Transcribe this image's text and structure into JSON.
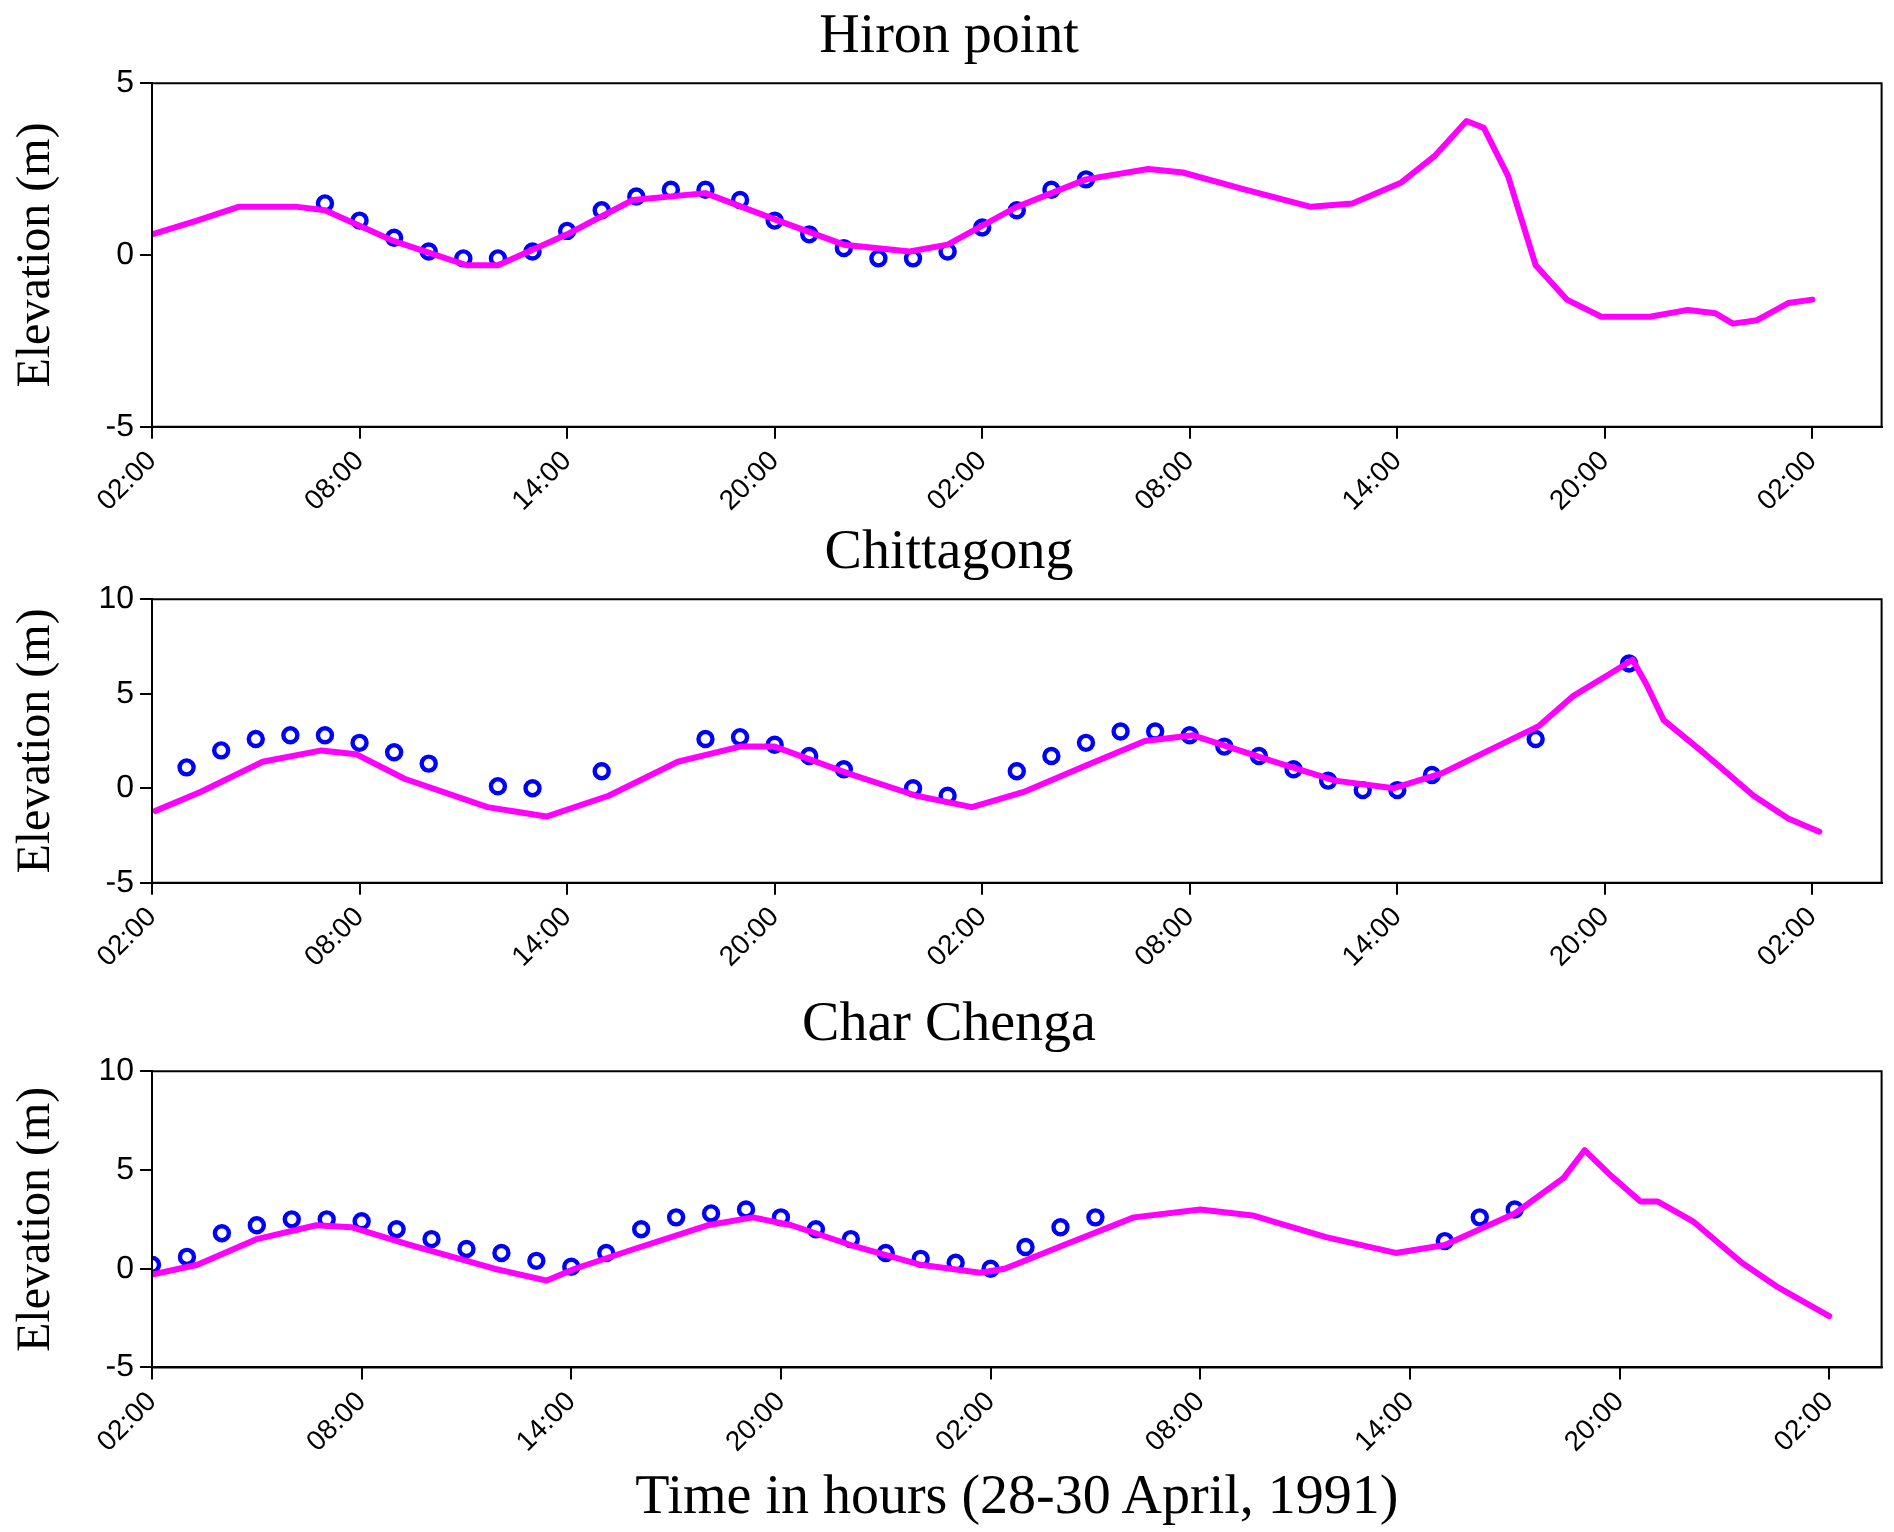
{
  "chart_data": [
    {
      "type": "line",
      "title": "Hiron point",
      "ylabel": "Elevation (m)",
      "xlim": [
        "1991-04-28T02:00",
        "1991-04-30T04:00"
      ],
      "ylim": [
        -5,
        5
      ],
      "yticks": [
        -5,
        0,
        5
      ],
      "xticks": [
        {
          "value": "1991-04-28T02:00",
          "label": "02:00"
        },
        {
          "value": "1991-04-28T08:00",
          "label": "08:00"
        },
        {
          "value": "1991-04-28T14:00",
          "label": "14:00"
        },
        {
          "value": "1991-04-28T20:00",
          "label": "20:00"
        },
        {
          "value": "1991-04-29T02:00",
          "label": "02:00"
        },
        {
          "value": "1991-04-29T08:00",
          "label": "08:00"
        },
        {
          "value": "1991-04-29T14:00",
          "label": "14:00"
        },
        {
          "value": "1991-04-29T20:00",
          "label": "20:00"
        },
        {
          "value": "1991-04-30T02:00",
          "label": "02:00"
        }
      ],
      "grid": false,
      "legend": false,
      "series": [
        {
          "type": "line",
          "color": "#ff00ff",
          "marker": "none",
          "line_style": "solid",
          "x": [
            "1991-04-28T02:00",
            "1991-04-28T03:18",
            "1991-04-28T04:30",
            "1991-04-28T06:12",
            "1991-04-28T07:00",
            "1991-04-28T09:00",
            "1991-04-28T11:06",
            "1991-04-28T12:00",
            "1991-04-28T14:00",
            "1991-04-28T15:54",
            "1991-04-28T18:00",
            "1991-04-28T20:06",
            "1991-04-28T22:00",
            "1991-04-28T23:54",
            "1991-04-29T01:00",
            "1991-04-29T03:00",
            "1991-04-29T05:00",
            "1991-04-29T06:48",
            "1991-04-29T07:48",
            "1991-04-29T09:36",
            "1991-04-29T11:30",
            "1991-04-29T12:42",
            "1991-04-29T14:06",
            "1991-04-29T15:06",
            "1991-04-29T16:00",
            "1991-04-29T16:30",
            "1991-04-29T17:12",
            "1991-04-29T18:00",
            "1991-04-29T18:54",
            "1991-04-29T19:54",
            "1991-04-29T21:18",
            "1991-04-29T22:24",
            "1991-04-29T23:12",
            "1991-04-29T23:42",
            "1991-04-30T00:24",
            "1991-04-30T01:18",
            "1991-04-30T02:00"
          ],
          "values": [
            0.6,
            1.0,
            1.4,
            1.4,
            1.3,
            0.4,
            -0.3,
            -0.3,
            0.6,
            1.6,
            1.8,
            1.0,
            0.3,
            0.1,
            0.3,
            1.4,
            2.2,
            2.5,
            2.4,
            1.9,
            1.4,
            1.5,
            2.1,
            2.9,
            3.9,
            3.7,
            2.3,
            -0.3,
            -1.3,
            -1.8,
            -1.8,
            -1.6,
            -1.7,
            -2,
            -1.9,
            -1.4,
            -1.3
          ]
        },
        {
          "type": "scatter",
          "color": "#0000ff",
          "marker": "circle",
          "x": [
            "1991-04-28T07:00",
            "1991-04-28T08:00",
            "1991-04-28T09:00",
            "1991-04-28T10:00",
            "1991-04-28T11:00",
            "1991-04-28T12:00",
            "1991-04-28T13:00",
            "1991-04-28T14:00",
            "1991-04-28T15:00",
            "1991-04-28T16:00",
            "1991-04-28T17:00",
            "1991-04-28T18:00",
            "1991-04-28T19:00",
            "1991-04-28T20:00",
            "1991-04-28T21:00",
            "1991-04-28T22:00",
            "1991-04-28T23:00",
            "1991-04-29T00:00",
            "1991-04-29T01:00",
            "1991-04-29T02:00",
            "1991-04-29T03:00",
            "1991-04-29T04:00",
            "1991-04-29T05:00"
          ],
          "values": [
            1.5,
            1.0,
            0.5,
            0.1,
            -0.1,
            -0.1,
            0.1,
            0.7,
            1.3,
            1.7,
            1.9,
            1.9,
            1.6,
            1.0,
            0.6,
            0.2,
            -0.1,
            -0.1,
            0.1,
            0.8,
            1.3,
            1.9,
            2.2
          ]
        }
      ]
    },
    {
      "type": "line",
      "title": "Chittagong",
      "ylabel": "Elevation (m)",
      "xlim": [
        "1991-04-28T02:00",
        "1991-04-30T04:00"
      ],
      "ylim": [
        -5,
        10
      ],
      "yticks": [
        -5,
        0,
        5,
        10
      ],
      "xticks": [
        {
          "value": "1991-04-28T02:00",
          "label": "02:00"
        },
        {
          "value": "1991-04-28T08:00",
          "label": "08:00"
        },
        {
          "value": "1991-04-28T14:00",
          "label": "14:00"
        },
        {
          "value": "1991-04-28T20:00",
          "label": "20:00"
        },
        {
          "value": "1991-04-29T02:00",
          "label": "02:00"
        },
        {
          "value": "1991-04-29T08:00",
          "label": "08:00"
        },
        {
          "value": "1991-04-29T14:00",
          "label": "14:00"
        },
        {
          "value": "1991-04-29T20:00",
          "label": "20:00"
        },
        {
          "value": "1991-04-30T02:00",
          "label": "02:00"
        }
      ],
      "grid": false,
      "legend": false,
      "series": [
        {
          "type": "line",
          "color": "#ff00ff",
          "marker": "none",
          "line_style": "solid",
          "x": [
            "1991-04-28T02:06",
            "1991-04-28T03:24",
            "1991-04-28T05:12",
            "1991-04-28T06:54",
            "1991-04-28T07:54",
            "1991-04-28T09:18",
            "1991-04-28T11:42",
            "1991-04-28T13:24",
            "1991-04-28T15:12",
            "1991-04-28T17:12",
            "1991-04-28T19:00",
            "1991-04-28T20:00",
            "1991-04-28T22:06",
            "1991-04-29T00:06",
            "1991-04-29T01:42",
            "1991-04-29T03:12",
            "1991-04-29T05:00",
            "1991-04-29T06:42",
            "1991-04-29T08:06",
            "1991-04-29T10:06",
            "1991-04-29T12:12",
            "1991-04-29T13:54",
            "1991-04-29T15:18",
            "1991-04-29T18:06",
            "1991-04-29T19:06",
            "1991-04-29T20:06",
            "1991-04-29T20:48",
            "1991-04-29T21:12",
            "1991-04-29T21:42",
            "1991-04-29T22:54",
            "1991-04-30T00:18",
            "1991-04-30T01:18",
            "1991-04-30T02:12"
          ],
          "values": [
            -1.2,
            -0.2,
            1.4,
            2.0,
            1.8,
            0.5,
            -1.0,
            -1.5,
            -0.4,
            1.4,
            2.2,
            2.2,
            0.8,
            -0.4,
            -1.0,
            -0.2,
            1.2,
            2.5,
            2.8,
            1.6,
            0.4,
            0,
            0.8,
            3.3,
            4.9,
            6,
            6.8,
            5.5,
            3.6,
            1.8,
            -0.4,
            -1.6,
            -2.3
          ]
        },
        {
          "type": "scatter",
          "color": "#0000ff",
          "marker": "circle",
          "x": [
            "1991-04-28T03:00",
            "1991-04-28T04:00",
            "1991-04-28T05:00",
            "1991-04-28T06:00",
            "1991-04-28T07:00",
            "1991-04-28T08:00",
            "1991-04-28T09:00",
            "1991-04-28T10:00",
            "1991-04-28T12:00",
            "1991-04-28T13:00",
            "1991-04-28T15:00",
            "1991-04-28T18:00",
            "1991-04-28T19:00",
            "1991-04-28T20:00",
            "1991-04-28T21:00",
            "1991-04-28T22:00",
            "1991-04-29T00:00",
            "1991-04-29T01:00",
            "1991-04-29T03:00",
            "1991-04-29T04:00",
            "1991-04-29T05:00",
            "1991-04-29T06:00",
            "1991-04-29T07:00",
            "1991-04-29T08:00",
            "1991-04-29T09:00",
            "1991-04-29T10:00",
            "1991-04-29T11:00",
            "1991-04-29T12:00",
            "1991-04-29T13:00",
            "1991-04-29T14:00",
            "1991-04-29T15:00",
            "1991-04-29T18:00",
            "1991-04-29T20:42"
          ],
          "values": [
            1.1,
            2.0,
            2.6,
            2.8,
            2.8,
            2.4,
            1.9,
            1.3,
            0.1,
            0,
            0.9,
            2.6,
            2.7,
            2.3,
            1.7,
            1,
            0,
            -0.4,
            0.9,
            1.7,
            2.4,
            3,
            3,
            2.8,
            2.2,
            1.7,
            1,
            0.4,
            -0.1,
            -0.1,
            0.7,
            2.6,
            6.6
          ]
        }
      ]
    },
    {
      "type": "line",
      "title": "Char Chenga",
      "ylabel": "Elevation (m)",
      "xlabel": "Time in hours (28-30 April, 1991)",
      "xlim": [
        "1991-04-28T02:00",
        "1991-04-30T03:30"
      ],
      "ylim": [
        -5,
        10
      ],
      "yticks": [
        -5,
        0,
        5,
        10
      ],
      "xticks": [
        {
          "value": "1991-04-28T02:00",
          "label": "02:00"
        },
        {
          "value": "1991-04-28T08:00",
          "label": "08:00"
        },
        {
          "value": "1991-04-28T14:00",
          "label": "14:00"
        },
        {
          "value": "1991-04-28T20:00",
          "label": "20:00"
        },
        {
          "value": "1991-04-29T02:00",
          "label": "02:00"
        },
        {
          "value": "1991-04-29T08:00",
          "label": "08:00"
        },
        {
          "value": "1991-04-29T14:00",
          "label": "14:00"
        },
        {
          "value": "1991-04-29T20:00",
          "label": "20:00"
        },
        {
          "value": "1991-04-30T02:00",
          "label": "02:00"
        }
      ],
      "grid": false,
      "legend": false,
      "series": [
        {
          "type": "line",
          "color": "#ff00ff",
          "marker": "none",
          "line_style": "solid",
          "x": [
            "1991-04-28T02:00",
            "1991-04-28T03:18",
            "1991-04-28T05:00",
            "1991-04-28T06:42",
            "1991-04-28T07:42",
            "1991-04-28T09:24",
            "1991-04-28T11:48",
            "1991-04-28T13:18",
            "1991-04-28T14:06",
            "1991-04-28T15:48",
            "1991-04-28T17:54",
            "1991-04-28T19:12",
            "1991-04-28T20:18",
            "1991-04-28T22:00",
            "1991-04-29T00:00",
            "1991-04-29T01:42",
            "1991-04-29T02:24",
            "1991-04-29T04:06",
            "1991-04-29T06:06",
            "1991-04-29T08:00",
            "1991-04-29T09:30",
            "1991-04-29T11:36",
            "1991-04-29T13:36",
            "1991-04-29T15:00",
            "1991-04-29T17:00",
            "1991-04-29T18:24",
            "1991-04-29T19:00",
            "1991-04-29T19:42",
            "1991-04-29T20:36",
            "1991-04-29T21:06",
            "1991-04-29T22:06",
            "1991-04-29T23:30",
            "1991-04-30T00:30",
            "1991-04-30T02:00"
          ],
          "values": [
            -0.3,
            0.2,
            1.5,
            2.2,
            2.1,
            1.2,
            0,
            -0.6,
            0,
            1.0,
            2.2,
            2.6,
            2.2,
            1.2,
            0.2,
            -0.2,
            0,
            1.2,
            2.6,
            3,
            2.7,
            1.6,
            0.8,
            1.2,
            2.8,
            4.6,
            6,
            4.8,
            3.4,
            3.4,
            2.4,
            0.3,
            -0.9,
            -2.4
          ]
        },
        {
          "type": "scatter",
          "color": "#0000ff",
          "marker": "circle",
          "x": [
            "1991-04-28T02:00",
            "1991-04-28T03:00",
            "1991-04-28T04:00",
            "1991-04-28T05:00",
            "1991-04-28T06:00",
            "1991-04-28T07:00",
            "1991-04-28T08:00",
            "1991-04-28T09:00",
            "1991-04-28T10:00",
            "1991-04-28T11:00",
            "1991-04-28T12:00",
            "1991-04-28T13:00",
            "1991-04-28T14:00",
            "1991-04-28T15:00",
            "1991-04-28T16:00",
            "1991-04-28T17:00",
            "1991-04-28T18:00",
            "1991-04-28T19:00",
            "1991-04-28T20:00",
            "1991-04-28T21:00",
            "1991-04-28T22:00",
            "1991-04-28T23:00",
            "1991-04-29T00:00",
            "1991-04-29T01:00",
            "1991-04-29T02:00",
            "1991-04-29T03:00",
            "1991-04-29T04:00",
            "1991-04-29T05:00",
            "1991-04-29T15:00",
            "1991-04-29T16:00",
            "1991-04-29T17:00"
          ],
          "values": [
            0.2,
            0.6,
            1.8,
            2.2,
            2.5,
            2.5,
            2.4,
            2,
            1.5,
            1,
            0.8,
            0.4,
            0.1,
            0.8,
            2,
            2.6,
            2.8,
            3,
            2.6,
            2,
            1.5,
            0.8,
            0.5,
            0.3,
            0,
            1.1,
            2.1,
            2.6,
            1.4,
            2.6,
            3
          ]
        }
      ]
    }
  ]
}
